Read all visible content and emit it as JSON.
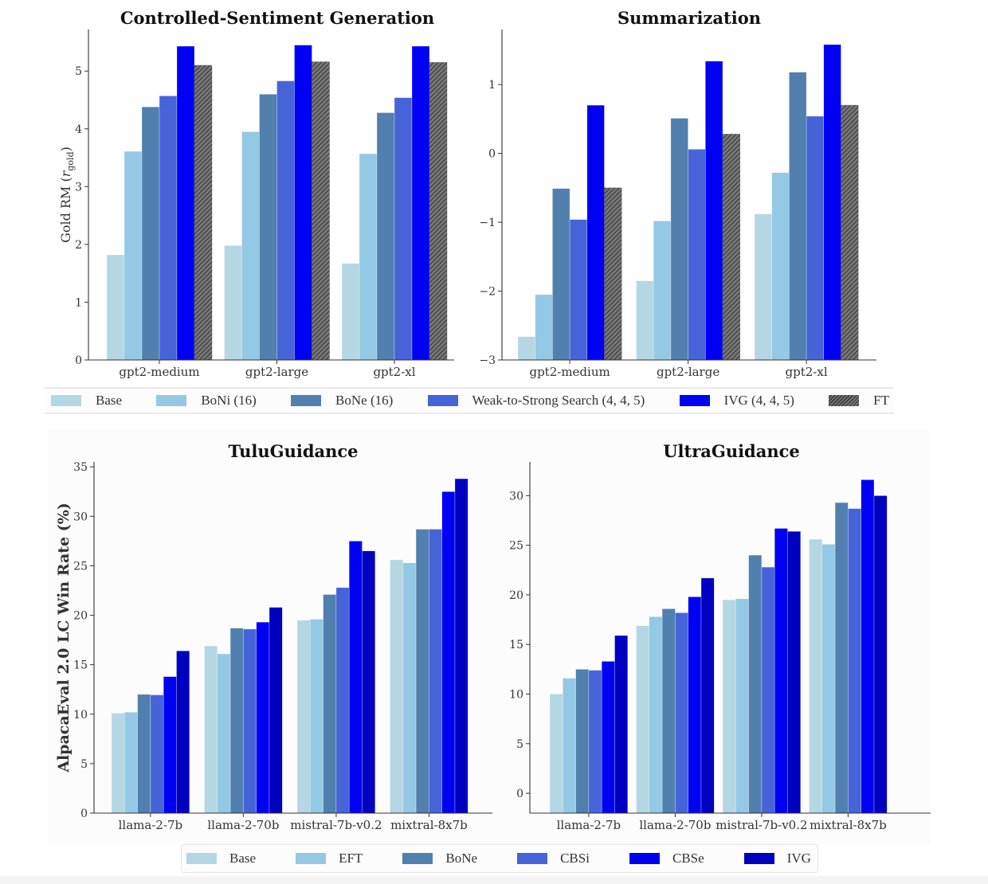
{
  "figure": {
    "top_legend": [
      {
        "label": "Base",
        "color": "#b4d7e3",
        "hatch": false
      },
      {
        "label": "BoNi (16)",
        "color": "#93c9e4",
        "hatch": false
      },
      {
        "label": "BoNe (16)",
        "color": "#517fae",
        "hatch": false
      },
      {
        "label": "Weak-to-Strong Search (4, 4, 5)",
        "color": "#4664d8",
        "hatch": false
      },
      {
        "label": "IVG (4, 4, 5)",
        "color": "#0000f2",
        "hatch": true
      },
      {
        "label": "FT",
        "color": "#6e6e6e",
        "hatch": true
      }
    ],
    "bottom_legend": [
      {
        "label": "Base",
        "color": "#b4d7e3"
      },
      {
        "label": "EFT",
        "color": "#93c9e4"
      },
      {
        "label": "BoNe",
        "color": "#517fae"
      },
      {
        "label": "CBSi",
        "color": "#4664d8"
      },
      {
        "label": "CBSe",
        "color": "#0000f2"
      },
      {
        "label": "IVG",
        "color": "#0000c0"
      }
    ]
  },
  "chart_data": [
    {
      "type": "bar",
      "title": "Controlled-Sentiment Generation",
      "xlabel": "",
      "ylabel": "Gold RM (r_gold)",
      "ylabel_main": "Gold RM (",
      "ylabel_var": "r",
      "ylabel_sub": "gold",
      "ylabel_close": ")",
      "ylim": [
        0,
        5.72
      ],
      "yticks": [
        0,
        1,
        2,
        3,
        4,
        5
      ],
      "grid": false,
      "legend": "below-shared",
      "categories": [
        "gpt2-medium",
        "gpt2-large",
        "gpt2-xl"
      ],
      "series": [
        {
          "name": "Base",
          "color": "#b4d7e3",
          "values": [
            1.82,
            1.98,
            1.67
          ]
        },
        {
          "name": "BoNi (16)",
          "color": "#93c9e4",
          "values": [
            3.61,
            3.95,
            3.57
          ]
        },
        {
          "name": "BoNe (16)",
          "color": "#517fae",
          "values": [
            4.38,
            4.6,
            4.28
          ]
        },
        {
          "name": "Weak-to-Strong Search (4, 4, 5)",
          "color": "#4664d8",
          "values": [
            4.57,
            4.83,
            4.54
          ]
        },
        {
          "name": "IVG (4, 4, 5)",
          "color": "#0000f2",
          "values": [
            5.43,
            5.45,
            5.43
          ]
        },
        {
          "name": "FT",
          "color": "#6e6e6e",
          "hatch": true,
          "values": [
            5.1,
            5.16,
            5.15
          ]
        }
      ]
    },
    {
      "type": "bar",
      "title": "Summarization",
      "xlabel": "",
      "ylabel": "",
      "ylim": [
        -3,
        1.8
      ],
      "yticks": [
        -3,
        -2,
        -1,
        0,
        1
      ],
      "grid": false,
      "legend": "below-shared",
      "categories": [
        "gpt2-medium",
        "gpt2-large",
        "gpt2-xl"
      ],
      "series": [
        {
          "name": "Base",
          "color": "#b4d7e3",
          "values": [
            -2.66,
            -1.85,
            -0.88
          ]
        },
        {
          "name": "BoNi (16)",
          "color": "#93c9e4",
          "values": [
            -2.05,
            -0.98,
            -0.28
          ]
        },
        {
          "name": "BoNe (16)",
          "color": "#517fae",
          "values": [
            -0.51,
            0.51,
            1.18
          ]
        },
        {
          "name": "Weak-to-Strong Search (4, 4, 5)",
          "color": "#4664d8",
          "values": [
            -0.96,
            0.06,
            0.54
          ]
        },
        {
          "name": "IVG (4, 4, 5)",
          "color": "#0000f2",
          "values": [
            0.7,
            1.34,
            1.58
          ]
        },
        {
          "name": "FT",
          "color": "#6e6e6e",
          "hatch": true,
          "values": [
            -0.5,
            0.28,
            0.7
          ]
        }
      ]
    },
    {
      "type": "bar",
      "title": "TuluGuidance",
      "xlabel": "",
      "ylabel": "AlpacaEval 2.0 LC Win Rate (%)",
      "ylim": [
        0,
        35.5
      ],
      "yticks": [
        0,
        5,
        10,
        15,
        20,
        25,
        30,
        35
      ],
      "grid": false,
      "legend": "below-shared",
      "categories": [
        "llama-2-7b",
        "llama-2-70b",
        "mistral-7b-v0.2",
        "mixtral-8x7b"
      ],
      "series": [
        {
          "name": "Base",
          "color": "#b4d7e3",
          "values": [
            10.1,
            16.9,
            19.5,
            25.6
          ]
        },
        {
          "name": "EFT",
          "color": "#93c9e4",
          "values": [
            10.2,
            16.1,
            19.6,
            25.3
          ]
        },
        {
          "name": "BoNe",
          "color": "#517fae",
          "values": [
            12.0,
            18.7,
            22.1,
            28.7
          ]
        },
        {
          "name": "CBSi",
          "color": "#4664d8",
          "values": [
            11.95,
            18.6,
            22.8,
            28.7
          ]
        },
        {
          "name": "CBSe",
          "color": "#0000f2",
          "values": [
            13.8,
            19.3,
            27.5,
            32.5
          ]
        },
        {
          "name": "IVG",
          "color": "#0000c0",
          "values": [
            16.4,
            20.8,
            26.5,
            33.8
          ]
        }
      ]
    },
    {
      "type": "bar",
      "title": "UltraGuidance",
      "xlabel": "",
      "ylabel": "",
      "ylim": [
        -2,
        33.4
      ],
      "yticks": [
        0,
        5,
        10,
        15,
        20,
        25,
        30
      ],
      "grid": false,
      "legend": "below-shared",
      "categories": [
        "llama-2-7b",
        "llama-2-70b",
        "mistral-7b-v0.2",
        "mixtral-8x7b"
      ],
      "series": [
        {
          "name": "Base",
          "color": "#b4d7e3",
          "values": [
            10.0,
            16.9,
            19.5,
            25.6
          ]
        },
        {
          "name": "EFT",
          "color": "#93c9e4",
          "values": [
            11.6,
            17.8,
            19.6,
            25.1
          ]
        },
        {
          "name": "BoNe",
          "color": "#517fae",
          "values": [
            12.5,
            18.6,
            24.0,
            29.3
          ]
        },
        {
          "name": "CBSi",
          "color": "#4664d8",
          "values": [
            12.4,
            18.2,
            22.8,
            28.7
          ]
        },
        {
          "name": "CBSe",
          "color": "#0000f2",
          "values": [
            13.3,
            19.8,
            26.7,
            31.6
          ]
        },
        {
          "name": "IVG",
          "color": "#0000c0",
          "values": [
            15.9,
            21.7,
            26.4,
            30.0
          ]
        }
      ]
    }
  ]
}
